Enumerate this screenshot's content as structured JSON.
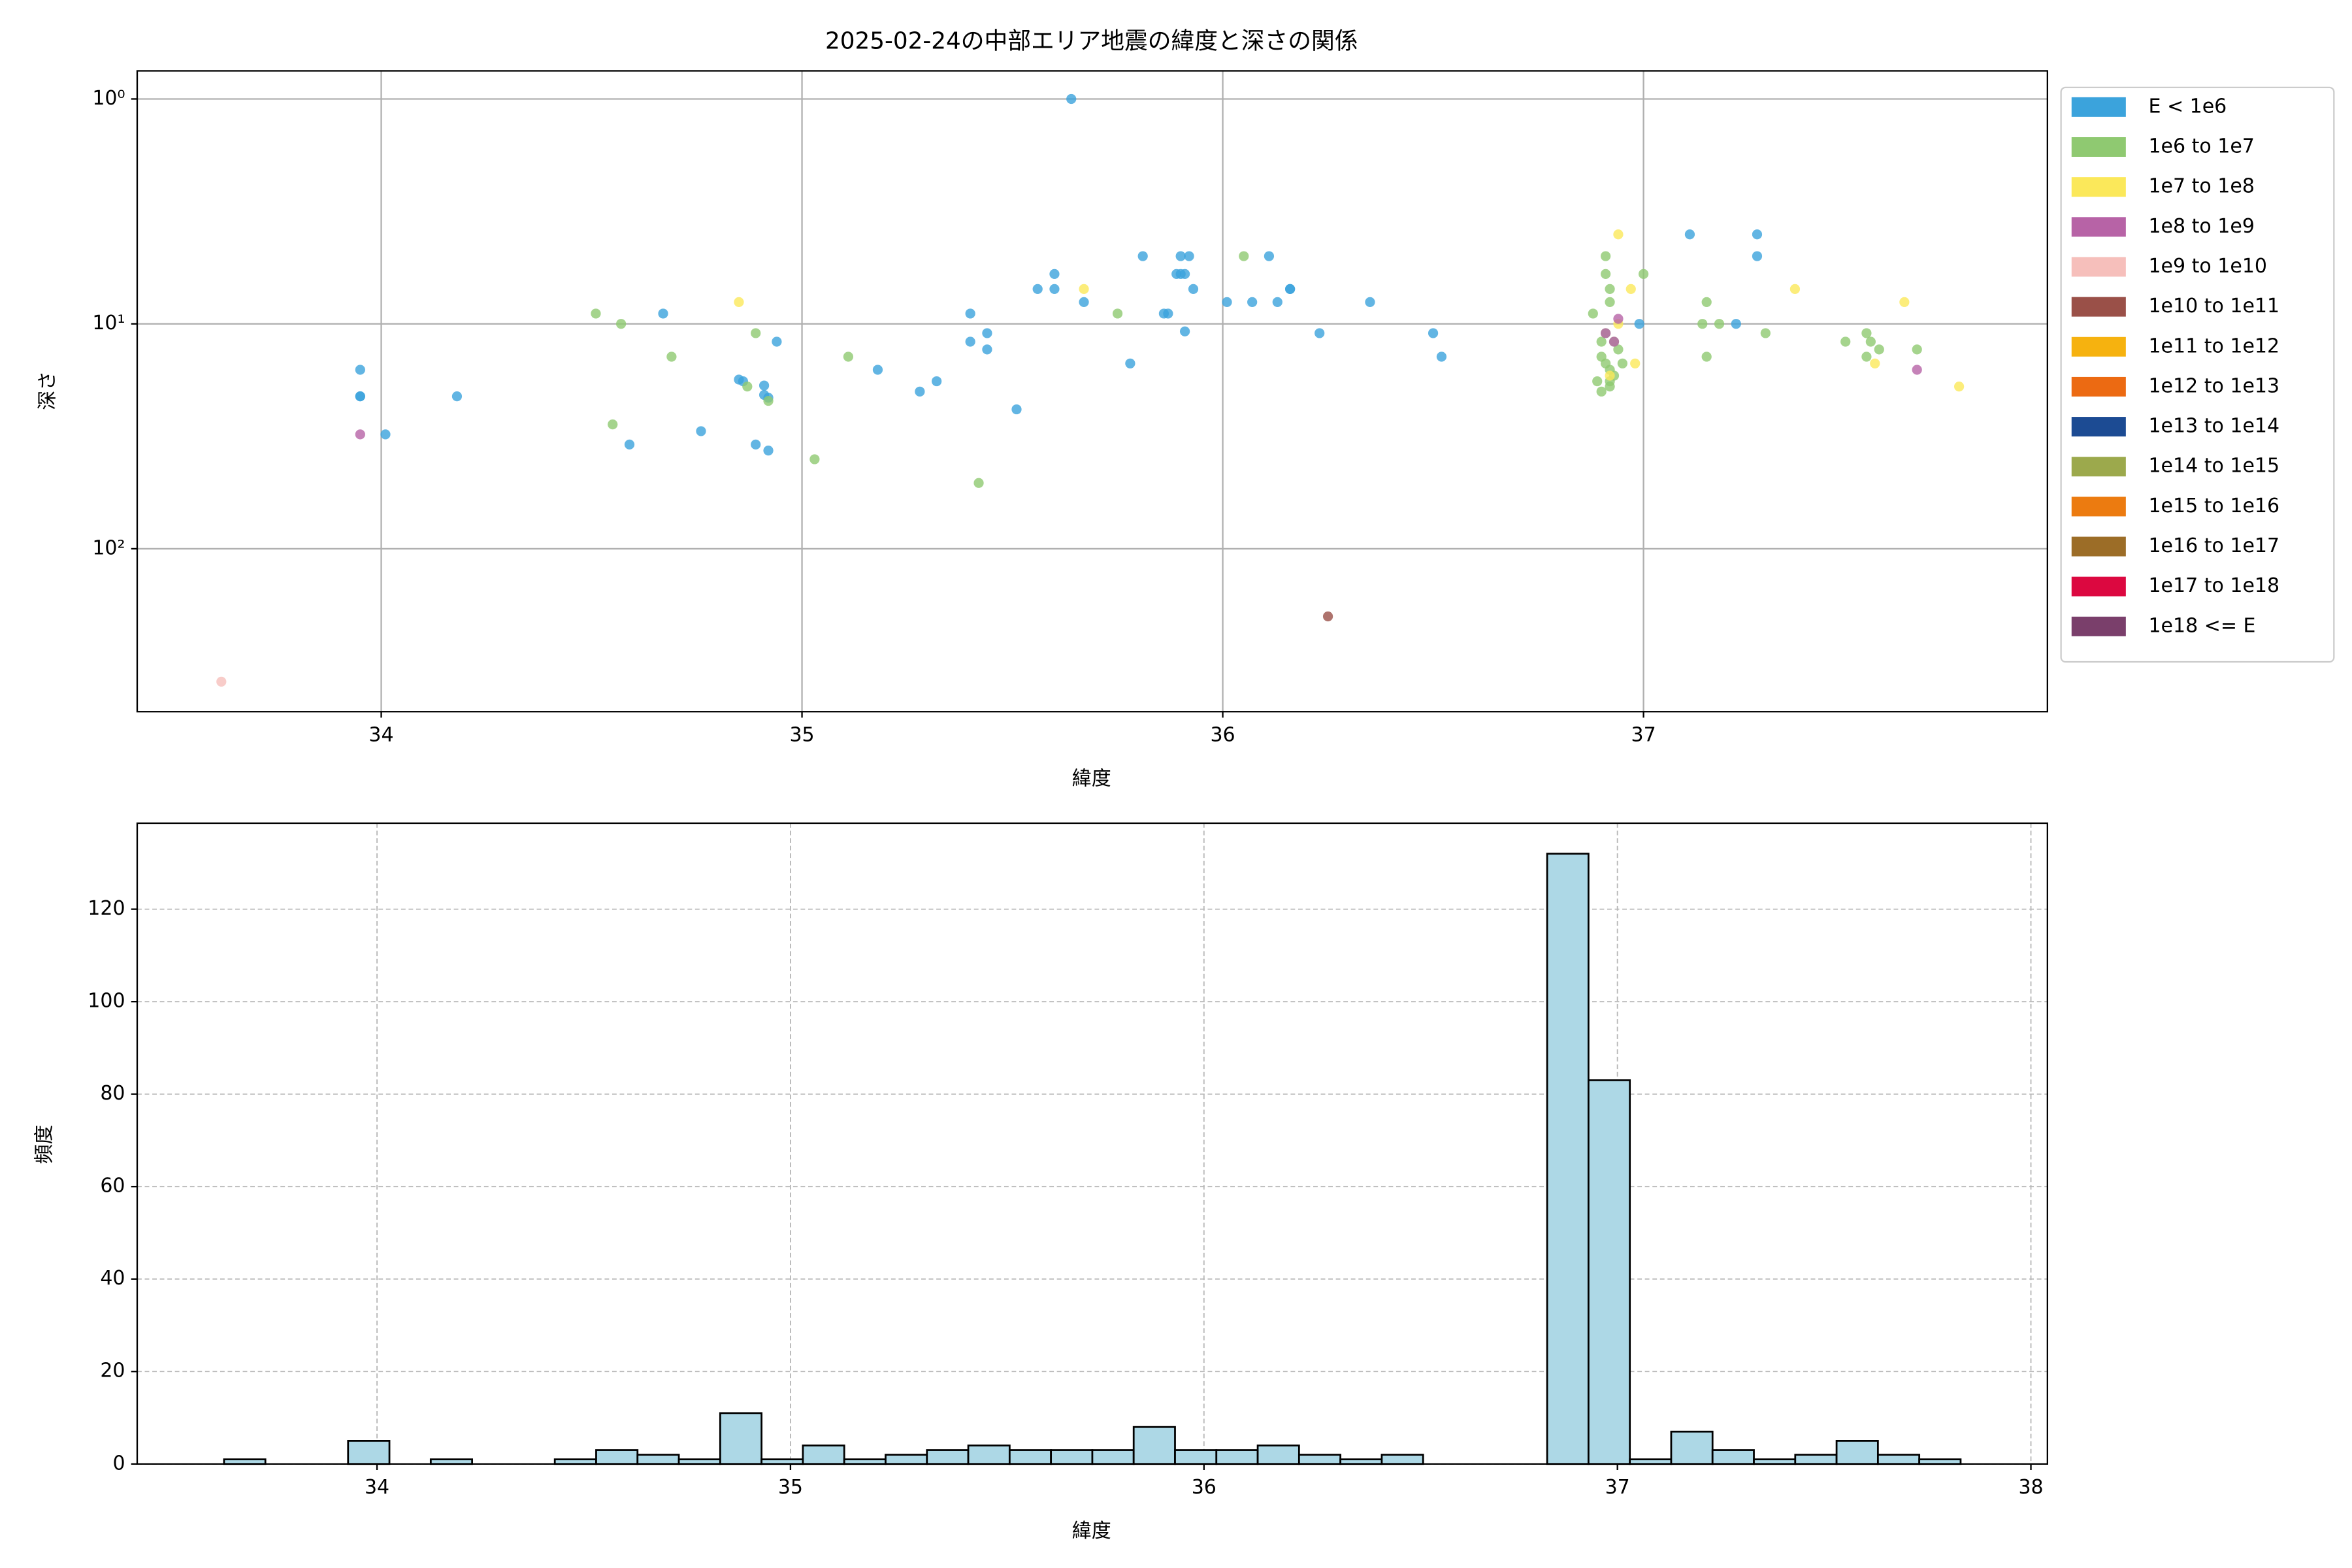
{
  "chart_data": [
    {
      "type": "scatter",
      "title": "2025-02-24の中部エリア地震の緯度と深さの関係",
      "xlabel": "緯度",
      "ylabel": "深さ",
      "xlim": [
        33.42,
        37.96
      ],
      "ylim": [
        0.75,
        530
      ],
      "yscale": "log",
      "y_inverted": true,
      "xticks": [
        34,
        35,
        36,
        37
      ],
      "yticks": [
        {
          "value": 1,
          "label": "10⁰"
        },
        {
          "value": 10,
          "label": "10¹"
        },
        {
          "value": 100,
          "label": "10²"
        }
      ],
      "grid": true,
      "legend": "outside-right",
      "series": [
        {
          "name": "E < 1e6",
          "color": "#3ba3dc",
          "x": [
            33.95,
            33.95,
            33.95,
            34.01,
            34.18,
            34.59,
            34.67,
            34.76,
            34.85,
            34.86,
            34.89,
            34.91,
            34.91,
            34.92,
            34.92,
            34.94,
            35.18,
            35.28,
            35.32,
            35.4,
            35.4,
            35.44,
            35.44,
            35.51,
            35.6,
            35.56,
            35.6,
            35.64,
            35.67,
            35.78,
            35.81,
            35.86,
            35.87,
            35.89,
            35.9,
            35.9,
            35.91,
            35.91,
            35.92,
            35.93,
            36.01,
            36.07,
            36.11,
            36.13,
            36.16,
            36.16,
            36.23,
            36.35,
            36.5,
            36.52,
            36.99,
            37.11,
            37.22,
            37.27,
            37.27
          ],
          "y": [
            16,
            21,
            21,
            31,
            21,
            34.4,
            9,
            30,
            17.7,
            18,
            34.4,
            18.8,
            20.7,
            21.3,
            36.6,
            12,
            16,
            20,
            18,
            9,
            12,
            11,
            13,
            24,
            6,
            7,
            7,
            1,
            8,
            15,
            5,
            9,
            9,
            6,
            5,
            6,
            10.8,
            6,
            5,
            7,
            8,
            8,
            5,
            8,
            7,
            7,
            11,
            8,
            11,
            14,
            10,
            4,
            10,
            4,
            5
          ]
        },
        {
          "name": "1e6 to 1e7",
          "color": "#8fc971",
          "x": [
            34.51,
            34.57,
            34.55,
            34.69,
            34.87,
            34.89,
            34.92,
            35.03,
            35.11,
            35.42,
            35.75,
            36.05,
            36.88,
            36.89,
            36.91,
            36.91,
            36.92,
            36.92,
            37.0,
            37.15,
            37.15,
            37.14,
            37.18,
            37.29,
            37.48,
            37.53,
            37.54,
            37.56,
            37.53,
            37.65,
            36.9,
            36.91,
            36.92,
            36.93,
            36.9,
            36.92,
            36.94,
            36.91,
            36.93,
            36.95,
            36.92,
            36.9
          ],
          "y": [
            9,
            10,
            28,
            14,
            19,
            11,
            22,
            40,
            14,
            51,
            9,
            5,
            9,
            18,
            5,
            6,
            7,
            8,
            6,
            8,
            14,
            10,
            10,
            11,
            12,
            11,
            12,
            13,
            14,
            13,
            14,
            15,
            16,
            17,
            20,
            19,
            13,
            11,
            12,
            15,
            18,
            12
          ]
        },
        {
          "name": "1e7 to 1e8",
          "color": "#fbe85a",
          "x": [
            34.85,
            35.67,
            36.94,
            36.98,
            36.97,
            37.36,
            37.55,
            37.62,
            37.75,
            36.94,
            36.92
          ],
          "y": [
            8,
            7,
            4,
            15,
            7,
            7,
            15,
            8,
            19,
            10,
            17
          ]
        },
        {
          "name": "1e8 to 1e9",
          "color": "#b763a6",
          "x": [
            33.95,
            37.65,
            36.91,
            36.93,
            36.94
          ],
          "y": [
            31,
            16,
            11,
            12,
            9.5
          ]
        },
        {
          "name": "1e9 to 1e10",
          "color": "#f6bfbb",
          "x": [
            33.62
          ],
          "y": [
            390
          ]
        },
        {
          "name": "1e10 to 1e11",
          "color": "#9a5048",
          "x": [
            36.25
          ],
          "y": [
            200
          ]
        },
        {
          "name": "1e11 to 1e12",
          "color": "#f6b20f",
          "x": [],
          "y": []
        },
        {
          "name": "1e12 to 1e13",
          "color": "#ec6a12",
          "x": [],
          "y": []
        },
        {
          "name": "1e13 to 1e14",
          "color": "#1c4b93",
          "x": [],
          "y": []
        },
        {
          "name": "1e14 to 1e15",
          "color": "#9ca94c",
          "x": [],
          "y": []
        },
        {
          "name": "1e15 to 1e16",
          "color": "#ec7b10",
          "x": [],
          "y": []
        },
        {
          "name": "1e16 to 1e17",
          "color": "#9c6d27",
          "x": [],
          "y": []
        },
        {
          "name": "1e17 to 1e18",
          "color": "#dc0840",
          "x": [],
          "y": []
        },
        {
          "name": "1e18 <= E",
          "color": "#7a3f6b",
          "x": [],
          "y": []
        }
      ]
    },
    {
      "type": "histogram",
      "xlabel": "緯度",
      "ylabel": "頻度",
      "xlim": [
        33.42,
        38.04
      ],
      "ylim": [
        0,
        138.6
      ],
      "xticks": [
        34,
        35,
        36,
        37,
        38
      ],
      "yticks": [
        0,
        20,
        40,
        60,
        80,
        100,
        120
      ],
      "grid": true,
      "grid_style": "dashed",
      "color": "#add8e6",
      "edgecolor": "#000000",
      "bins": [
        33.63,
        33.73,
        33.83,
        33.93,
        34.03,
        34.13,
        34.23,
        34.33,
        34.43,
        34.53,
        34.63,
        34.73,
        34.83,
        34.93,
        35.03,
        35.13,
        35.23,
        35.33,
        35.43,
        35.53,
        35.63,
        35.73,
        35.83,
        35.93,
        36.03,
        36.13,
        36.23,
        36.33,
        36.43,
        36.53,
        36.63,
        36.73,
        36.83,
        36.93,
        37.03,
        37.13,
        37.23,
        37.33,
        37.43,
        37.53,
        37.63,
        37.73,
        37.83
      ],
      "values": [
        1,
        0,
        0,
        5,
        0,
        1,
        0,
        0,
        1,
        3,
        2,
        1,
        11,
        1,
        4,
        1,
        2,
        3,
        4,
        3,
        3,
        3,
        8,
        3,
        3,
        4,
        2,
        1,
        2,
        0,
        0,
        0,
        132,
        83,
        1,
        7,
        3,
        1,
        2,
        5,
        2,
        1
      ]
    }
  ]
}
